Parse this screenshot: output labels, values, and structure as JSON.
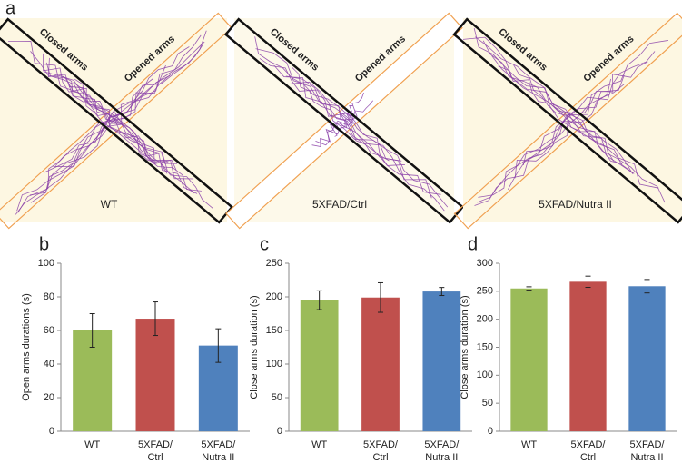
{
  "panel_letter": "a",
  "mazes": [
    {
      "closed_label": "Closed arms",
      "open_label": "Opened arms",
      "group": "WT"
    },
    {
      "closed_label": "Closed arms",
      "open_label": "Opened arms",
      "group": "5XFAD/Ctrl"
    },
    {
      "closed_label": "Closed arms",
      "open_label": "Opened arms",
      "group": "5XFAD/Nutra II"
    }
  ],
  "chart_data": [
    {
      "type": "bar",
      "letter": "b",
      "ylabel": "Open arms durations (s)",
      "categories": [
        "WT",
        "5XFAD/\nCtrl",
        "5XFAD/\nNutra II"
      ],
      "values": [
        60,
        67,
        51
      ],
      "errors": [
        10,
        10,
        10
      ],
      "colors": [
        "#9bbb59",
        "#c0504d",
        "#4f81bd"
      ],
      "ylim": [
        0,
        100
      ],
      "yticks": [
        0,
        20,
        40,
        60,
        80,
        100
      ]
    },
    {
      "type": "bar",
      "letter": "c",
      "ylabel": "Close arms duration (s)",
      "categories": [
        "WT",
        "5XFAD/\nCtrl",
        "5XFAD/\nNutra II"
      ],
      "values": [
        195,
        199,
        208
      ],
      "errors": [
        14,
        22,
        6
      ],
      "colors": [
        "#9bbb59",
        "#c0504d",
        "#4f81bd"
      ],
      "ylim": [
        0,
        250
      ],
      "yticks": [
        0,
        50,
        100,
        150,
        200,
        250
      ]
    },
    {
      "type": "bar",
      "letter": "d",
      "ylabel": "Close arms duration (s)",
      "categories": [
        "WT",
        "5XFAD/\nCtrl",
        "5XFAD/\nNutra II"
      ],
      "values": [
        255,
        267,
        259
      ],
      "errors": [
        3,
        10,
        12
      ],
      "colors": [
        "#9bbb59",
        "#c0504d",
        "#4f81bd"
      ],
      "ylim": [
        0,
        300
      ],
      "yticks": [
        0,
        50,
        100,
        150,
        200,
        250,
        300
      ]
    }
  ]
}
